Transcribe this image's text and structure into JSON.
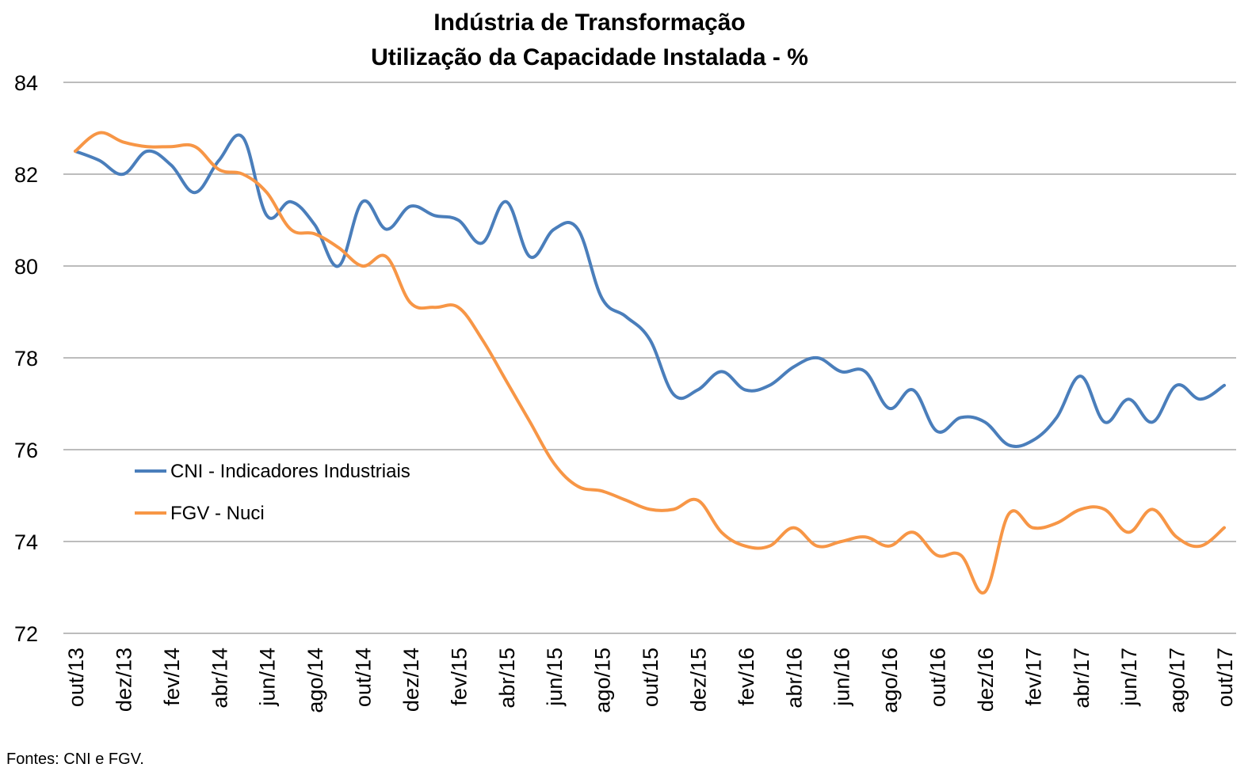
{
  "chart_data": {
    "type": "line",
    "title": "Indústria de Transformação",
    "subtitle": "Utilização da Capacidade Instalada - %",
    "xlabel": "",
    "ylabel": "",
    "ylim": [
      72,
      84
    ],
    "yticks": [
      72,
      74,
      76,
      78,
      80,
      82,
      84
    ],
    "grid": true,
    "legend_position": "left-middle",
    "x_tick_labels": [
      "out/13",
      "dez/13",
      "fev/14",
      "abr/14",
      "jun/14",
      "ago/14",
      "out/14",
      "dez/14",
      "fev/15",
      "abr/15",
      "jun/15",
      "ago/15",
      "out/15",
      "dez/15",
      "fev/16",
      "abr/16",
      "jun/16",
      "ago/16",
      "out/16",
      "dez/16",
      "fev/17",
      "abr/17",
      "jun/17",
      "ago/17",
      "out/17"
    ],
    "x": [
      "out/13",
      "nov/13",
      "dez/13",
      "jan/14",
      "fev/14",
      "mar/14",
      "abr/14",
      "mai/14",
      "jun/14",
      "jul/14",
      "ago/14",
      "set/14",
      "out/14",
      "nov/14",
      "dez/14",
      "jan/15",
      "fev/15",
      "mar/15",
      "abr/15",
      "mai/15",
      "jun/15",
      "jul/15",
      "ago/15",
      "set/15",
      "out/15",
      "nov/15",
      "dez/15",
      "jan/16",
      "fev/16",
      "mar/16",
      "abr/16",
      "mai/16",
      "jun/16",
      "jul/16",
      "ago/16",
      "set/16",
      "out/16",
      "nov/16",
      "dez/16",
      "jan/17",
      "fev/17",
      "mar/17",
      "abr/17",
      "mai/17",
      "jun/17",
      "jul/17",
      "ago/17",
      "set/17",
      "out/17"
    ],
    "series": [
      {
        "name": "CNI - Indicadores Industriais",
        "color": "#4a7ebb",
        "values": [
          82.5,
          82.3,
          82.0,
          82.5,
          82.2,
          81.6,
          82.3,
          82.8,
          81.1,
          81.4,
          80.9,
          80.0,
          81.4,
          80.8,
          81.3,
          81.1,
          81.0,
          80.5,
          81.4,
          80.2,
          80.8,
          80.8,
          79.3,
          78.9,
          78.4,
          77.2,
          77.3,
          77.7,
          77.3,
          77.4,
          77.8,
          78.0,
          77.7,
          77.7,
          76.9,
          77.3,
          76.4,
          76.7,
          76.6,
          76.1,
          76.2,
          76.7,
          77.6,
          76.6,
          77.1,
          76.6,
          77.4,
          77.1,
          77.4
        ]
      },
      {
        "name": "FGV - Nuci",
        "color": "#f79646",
        "values": [
          82.5,
          82.9,
          82.7,
          82.6,
          82.6,
          82.6,
          82.1,
          82.0,
          81.6,
          80.8,
          80.7,
          80.4,
          80.0,
          80.2,
          79.2,
          79.1,
          79.1,
          78.4,
          77.5,
          76.6,
          75.7,
          75.2,
          75.1,
          74.9,
          74.7,
          74.7,
          74.9,
          74.2,
          73.9,
          73.9,
          74.3,
          73.9,
          74.0,
          74.1,
          73.9,
          74.2,
          73.7,
          73.7,
          72.9,
          74.6,
          74.3,
          74.4,
          74.7,
          74.7,
          74.2,
          74.7,
          74.1,
          73.9,
          74.3
        ]
      }
    ]
  },
  "footer": "Fontes: CNI e FGV."
}
